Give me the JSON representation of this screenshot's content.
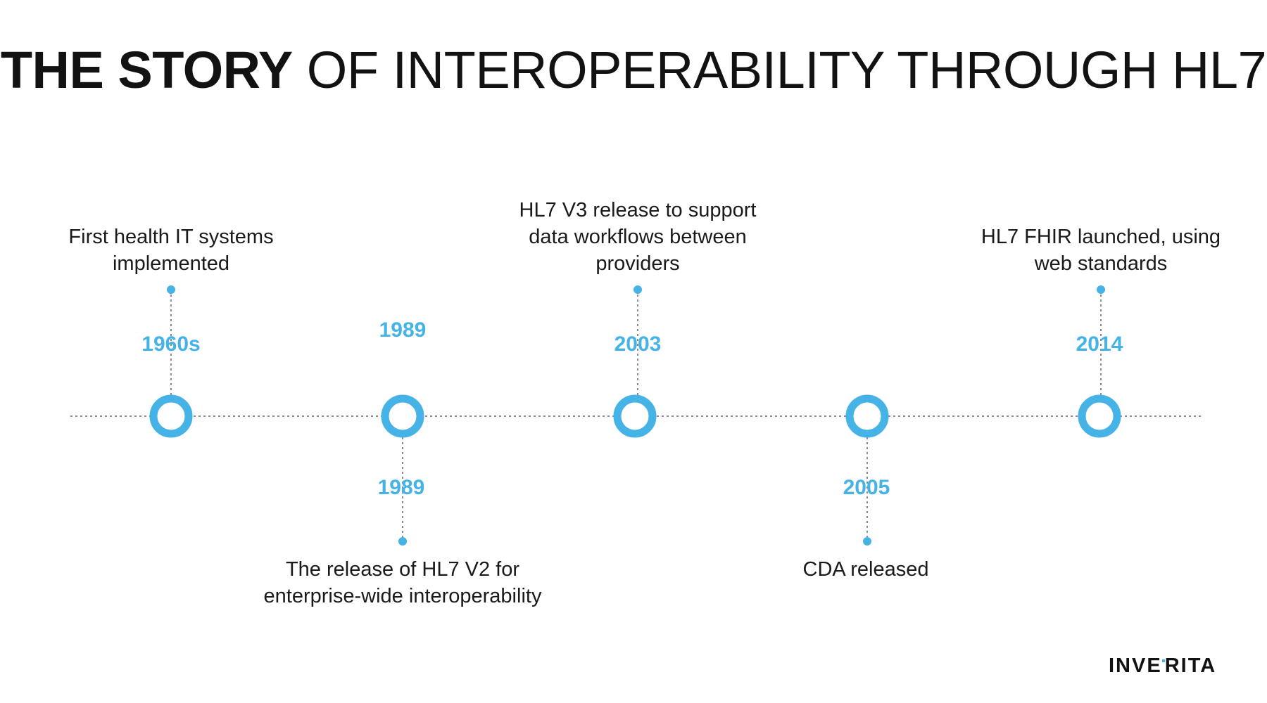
{
  "title": {
    "bold": "THE STORY",
    "rest": "OF INTEROPERABILITY THROUGH HL7"
  },
  "colors": {
    "accent": "#45b3e6",
    "text": "#1a1a1a",
    "axis": "#8a8a8a"
  },
  "milestones": [
    {
      "year": "1960s",
      "text": "First health IT systems implemented",
      "side": "top"
    },
    {
      "year": "1989",
      "text": "The release of HL7 V2 for enterprise-wide interoperability",
      "side": "bottom"
    },
    {
      "year": "2003",
      "text": "HL7 V3 release to support data workflows between providers",
      "side": "top"
    },
    {
      "year": "2005",
      "text": "CDA released",
      "side": "bottom"
    },
    {
      "year": "2014",
      "text": "HL7 FHIR launched, using web standards",
      "side": "top"
    }
  ],
  "stray_label": "1989",
  "logo": {
    "left": "INVE",
    "right": "RITA"
  }
}
